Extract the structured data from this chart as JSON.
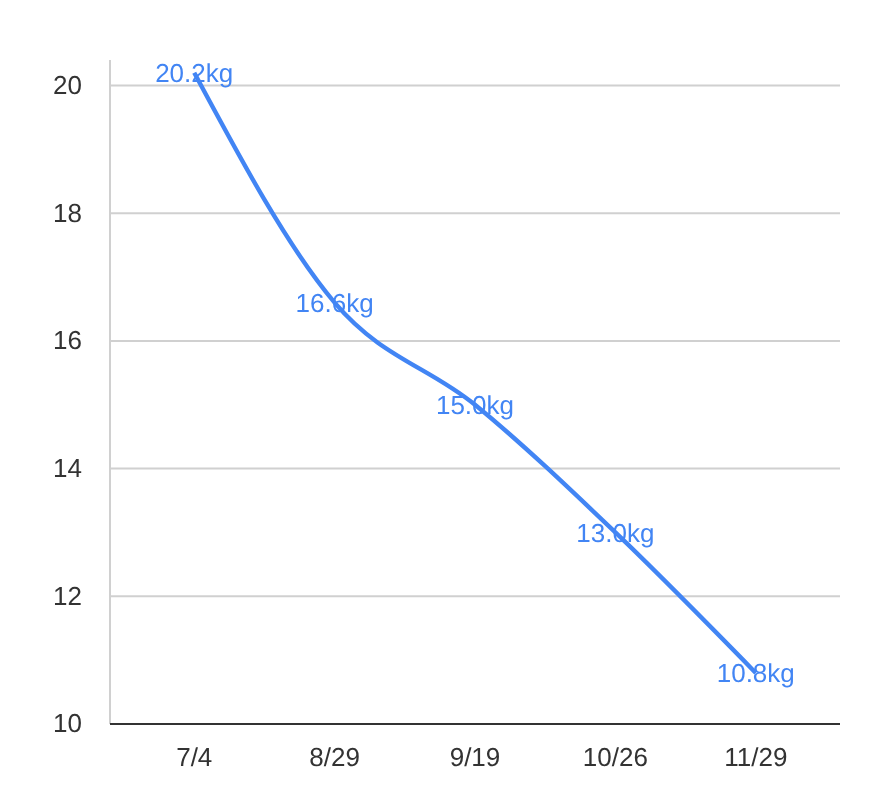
{
  "chart_data": {
    "type": "line",
    "categories": [
      "7/4",
      "8/29",
      "9/19",
      "10/26",
      "11/29"
    ],
    "series": [
      {
        "color": "#4285f4",
        "values": [
          20.2,
          16.6,
          15.0,
          13.0,
          10.8
        ],
        "value_labels": [
          "20.2kg",
          "16.6kg",
          "15.0kg",
          "13.0kg",
          "10.8kg"
        ]
      }
    ],
    "ylim": [
      10,
      20.4
    ],
    "yticks": [
      10,
      12,
      14,
      16,
      18,
      20
    ],
    "grid": "y",
    "marker": "none",
    "line_style": "solid"
  }
}
